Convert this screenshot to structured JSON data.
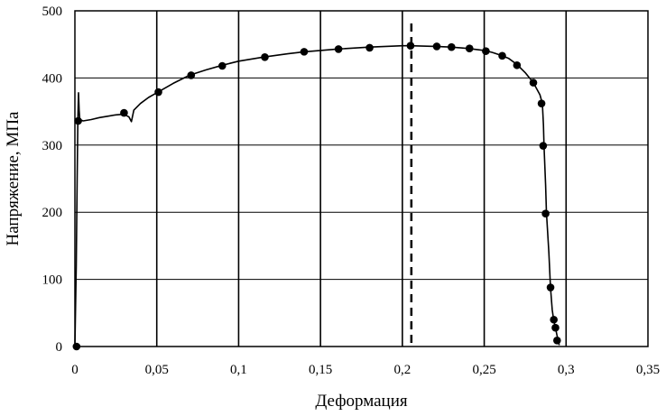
{
  "chart_data": {
    "type": "line",
    "xlabel": "Деформация",
    "ylabel": "Напряжение, МПа",
    "xlim": [
      0,
      0.35
    ],
    "ylim": [
      0,
      500
    ],
    "x_ticks": [
      {
        "value": 0,
        "label": "0"
      },
      {
        "value": 0.05,
        "label": "0,05"
      },
      {
        "value": 0.1,
        "label": "0,1"
      },
      {
        "value": 0.15,
        "label": "0,15"
      },
      {
        "value": 0.2,
        "label": "0,2"
      },
      {
        "value": 0.25,
        "label": "0,25"
      },
      {
        "value": 0.3,
        "label": "0,3"
      },
      {
        "value": 0.35,
        "label": "0,35"
      }
    ],
    "y_ticks": [
      {
        "value": 0,
        "label": "0"
      },
      {
        "value": 100,
        "label": "100"
      },
      {
        "value": 200,
        "label": "200"
      },
      {
        "value": 300,
        "label": "300"
      },
      {
        "value": 400,
        "label": "400"
      },
      {
        "value": 500,
        "label": "500"
      }
    ],
    "grid": true,
    "legend": "none",
    "series": [
      {
        "style": "line",
        "color": "#000000",
        "points": [
          [
            0,
            0
          ],
          [
            0.0008,
            120
          ],
          [
            0.0014,
            250
          ],
          [
            0.0018,
            340
          ],
          [
            0.0022,
            378
          ],
          [
            0.0026,
            352
          ],
          [
            0.003,
            338
          ],
          [
            0.005,
            336
          ],
          [
            0.01,
            338
          ],
          [
            0.015,
            341
          ],
          [
            0.02,
            343
          ],
          [
            0.025,
            345
          ],
          [
            0.03,
            346
          ],
          [
            0.033,
            342
          ],
          [
            0.0345,
            335
          ],
          [
            0.036,
            352
          ],
          [
            0.04,
            362
          ],
          [
            0.045,
            371
          ],
          [
            0.05,
            378
          ],
          [
            0.06,
            392
          ],
          [
            0.07,
            404
          ],
          [
            0.08,
            412
          ],
          [
            0.09,
            419
          ],
          [
            0.1,
            425
          ],
          [
            0.115,
            431
          ],
          [
            0.13,
            436
          ],
          [
            0.14,
            439
          ],
          [
            0.16,
            443
          ],
          [
            0.18,
            446
          ],
          [
            0.2,
            448
          ],
          [
            0.205,
            448
          ],
          [
            0.22,
            447
          ],
          [
            0.23,
            446
          ],
          [
            0.24,
            444
          ],
          [
            0.25,
            441
          ],
          [
            0.255,
            438
          ],
          [
            0.26,
            434
          ],
          [
            0.265,
            429
          ],
          [
            0.27,
            420
          ],
          [
            0.275,
            408
          ],
          [
            0.28,
            393
          ],
          [
            0.284,
            375
          ],
          [
            0.2855,
            362
          ],
          [
            0.2862,
            330
          ],
          [
            0.2865,
            300
          ],
          [
            0.2875,
            240
          ],
          [
            0.288,
            200
          ],
          [
            0.2895,
            140
          ],
          [
            0.2905,
            88
          ],
          [
            0.2915,
            55
          ],
          [
            0.2925,
            38
          ],
          [
            0.2935,
            28
          ],
          [
            0.2945,
            16
          ],
          [
            0.2953,
            8
          ],
          [
            0.2958,
            2
          ]
        ]
      },
      {
        "style": "markers",
        "color": "#000000",
        "points": [
          [
            0.001,
            0
          ],
          [
            0.002,
            336
          ],
          [
            0.03,
            348
          ],
          [
            0.051,
            379
          ],
          [
            0.071,
            404
          ],
          [
            0.09,
            418
          ],
          [
            0.116,
            431
          ],
          [
            0.14,
            439
          ],
          [
            0.161,
            443
          ],
          [
            0.18,
            445
          ],
          [
            0.205,
            448
          ],
          [
            0.221,
            447
          ],
          [
            0.23,
            446
          ],
          [
            0.241,
            444
          ],
          [
            0.251,
            440
          ],
          [
            0.261,
            433
          ],
          [
            0.27,
            419
          ],
          [
            0.28,
            393
          ],
          [
            0.285,
            362
          ],
          [
            0.286,
            299
          ],
          [
            0.2875,
            198
          ],
          [
            0.2905,
            88
          ],
          [
            0.2925,
            40
          ],
          [
            0.2935,
            28
          ],
          [
            0.2945,
            9
          ]
        ]
      }
    ],
    "reference_lines": [
      {
        "orientation": "vertical",
        "x": 0.2055,
        "style": "dashed",
        "color": "#000000"
      }
    ]
  }
}
